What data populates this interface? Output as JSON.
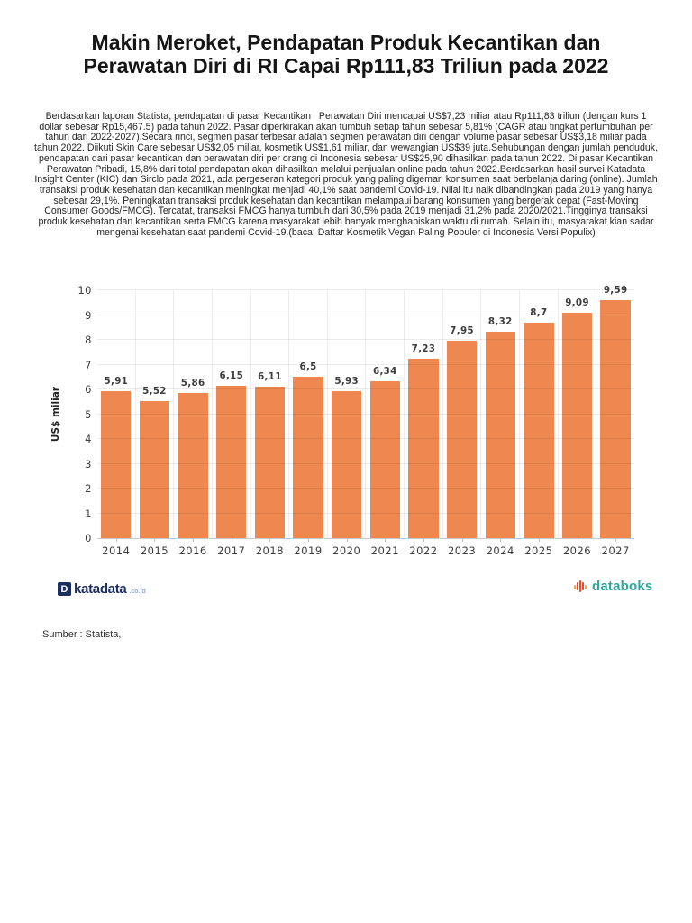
{
  "article": {
    "title": "Makin Meroket, Pendapatan Produk Kecantikan dan Perawatan Diri di RI Capai Rp111,83 Triliun pada 2022",
    "body": "Berdasarkan laporan Statista, pendapatan di pasar Kecantikan   Perawatan Diri mencapai US$7,23 miliar atau Rp111,83 triliun (dengan kurs 1 dollar sebesar Rp15,467.5) pada tahun 2022. Pasar diperkirakan akan tumbuh setiap tahun sebesar 5,81% (CAGR atau tingkat pertumbuhan per tahun dari 2022-2027).Secara rinci, segmen pasar terbesar adalah segmen perawatan diri dengan volume pasar sebesar US$3,18 miliar pada tahun 2022. Diikuti Skin Care sebesar US$2,05 miliar, kosmetik US$1,61 miliar, dan wewangian US$39 juta.Sehubungan dengan jumlah penduduk, pendapatan dari pasar kecantikan dan perawatan diri per orang di Indonesia sebesar US$25,90 dihasilkan pada tahun 2022. Di pasar Kecantikan   Perawatan Pribadi, 15,8% dari total pendapatan akan dihasilkan melalui penjualan online pada tahun 2022.Berdasarkan hasil survei Katadata Insight Center (KIC) dan Sirclo pada 2021, ada pergeseran kategori produk yang paling digemari konsumen saat berbelanja daring (online). Jumlah transaksi produk kesehatan dan kecantikan meningkat menjadi 40,1% saat pandemi Covid-19. Nilai itu naik dibandingkan pada 2019 yang hanya sebesar 29,1%. Peningkatan transaksi produk kesehatan dan kecantikan melampaui barang konsumen yang bergerak cepat (Fast-Moving Consumer Goods/FMCG). Tercatat, transaksi FMCG hanya tumbuh dari 30,5% pada 2019 menjadi 31,2% pada 2020/2021.Tingginya transaksi produk kesehatan dan kecantikan serta FMCG karena masyarakat lebih banyak menghabiskan waktu di rumah. Selain itu, masyarakat kian sadar mengenai kesehatan saat pandemi Covid-19.(baca: Daftar Kosmetik Vegan Paling Populer di Indonesia Versi Populix)",
    "source": "Sumber : Statista,"
  },
  "branding": {
    "katadata": {
      "icon_letter": "D",
      "name": "katadata",
      "suffix": ".co.id",
      "navy": "#1B2F5E",
      "suffix_color": "#9AA8C6"
    },
    "databoks": {
      "name": "databoks",
      "teal": "#2FA69B",
      "icon_red": "#E6492D",
      "icon_orange": "#F5A245"
    }
  },
  "chart_data": {
    "type": "bar",
    "categories": [
      "2014",
      "2015",
      "2016",
      "2017",
      "2018",
      "2019",
      "2020",
      "2021",
      "2022",
      "2023",
      "2024",
      "2025",
      "2026",
      "2027"
    ],
    "values": [
      5.91,
      5.52,
      5.86,
      6.15,
      6.11,
      6.5,
      5.93,
      6.34,
      7.23,
      7.95,
      8.32,
      8.7,
      9.09,
      9.59
    ],
    "value_labels": [
      "5,91",
      "5,52",
      "5,86",
      "6,15",
      "6,11",
      "6,5",
      "5,93",
      "6,34",
      "7,23",
      "7,95",
      "8,32",
      "8,7",
      "9,09",
      "9,59"
    ],
    "title": "",
    "xlabel": "",
    "ylabel": "US$ miliar",
    "ylim": [
      0,
      10
    ],
    "ytick_step": 1,
    "bar_color": "#EF8850",
    "grid": "on",
    "legend": "none"
  }
}
